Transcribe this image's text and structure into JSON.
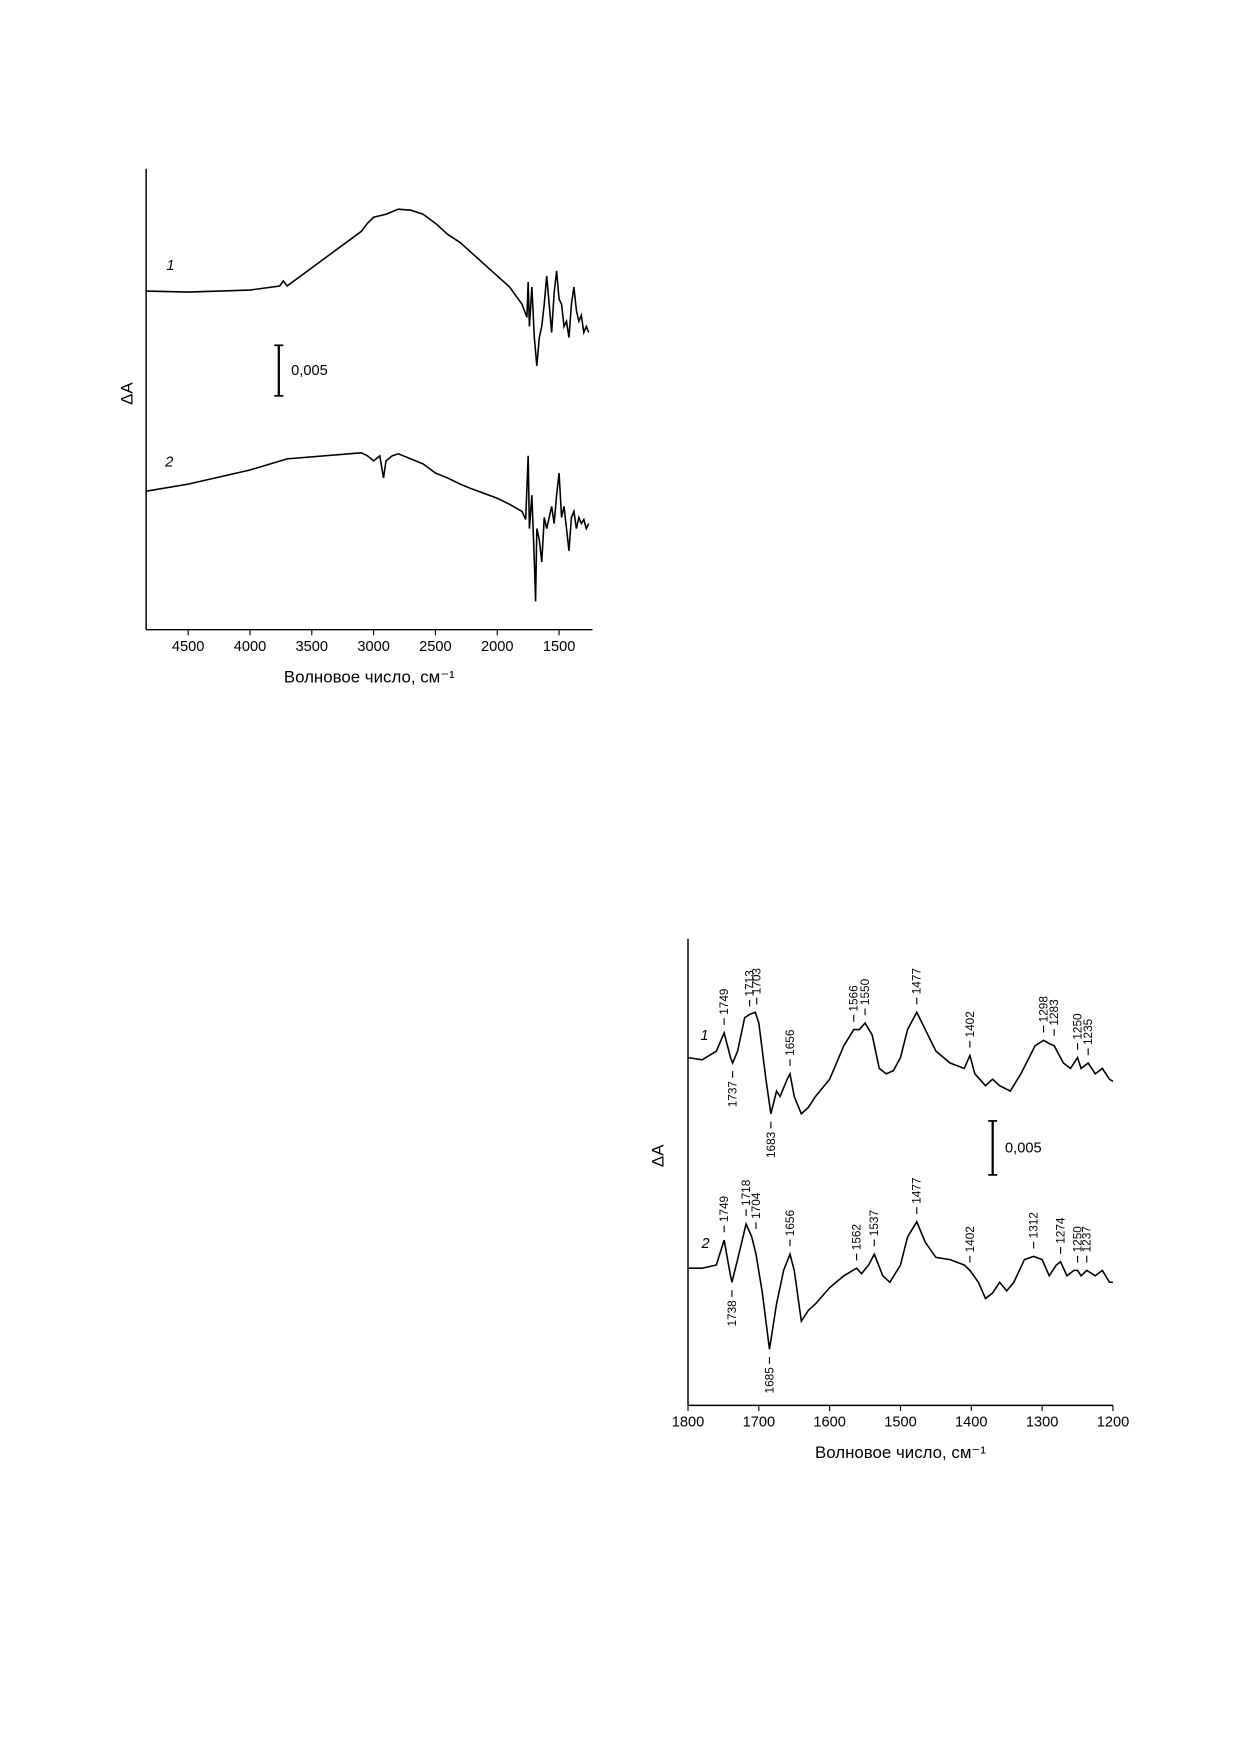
{
  "chart_data": [
    {
      "type": "line",
      "x_label": "Волновое число, см⁻¹",
      "y_label": "ΔA",
      "xlim": [
        4840,
        1230
      ],
      "xticks": [
        4500,
        4000,
        3500,
        3000,
        2500,
        2000,
        1500
      ],
      "ylim": [
        0,
        0.0456
      ],
      "scale_bar": {
        "value": 0.005,
        "label": "0,005"
      },
      "series": [
        {
          "name": "1",
          "color": "#000000",
          "x": [
            4840,
            4500,
            4000,
            3760,
            3730,
            3700,
            3100,
            3050,
            3000,
            2900,
            2800,
            2700,
            2600,
            2500,
            2400,
            2300,
            2200,
            2100,
            2000,
            1900,
            1800,
            1760,
            1750,
            1740,
            1720,
            1700,
            1680,
            1660,
            1640,
            1620,
            1600,
            1580,
            1560,
            1540,
            1520,
            1500,
            1480,
            1460,
            1440,
            1420,
            1400,
            1380,
            1360,
            1340,
            1320,
            1300,
            1280,
            1260
          ],
          "values": [
            0.0335,
            0.0334,
            0.0336,
            0.034,
            0.0345,
            0.034,
            0.0394,
            0.0402,
            0.0408,
            0.0411,
            0.0416,
            0.0415,
            0.0411,
            0.0402,
            0.0391,
            0.0383,
            0.0372,
            0.0361,
            0.035,
            0.0339,
            0.0322,
            0.0309,
            0.0344,
            0.03,
            0.0339,
            0.0289,
            0.0261,
            0.0289,
            0.03,
            0.0322,
            0.035,
            0.0322,
            0.0294,
            0.0333,
            0.0355,
            0.0327,
            0.0322,
            0.03,
            0.0305,
            0.0289,
            0.0322,
            0.0339,
            0.0316,
            0.0305,
            0.0311,
            0.0294,
            0.03,
            0.0294
          ]
        },
        {
          "name": "2",
          "color": "#000000",
          "x": [
            4840,
            4500,
            4000,
            3700,
            3100,
            3050,
            3000,
            2950,
            2920,
            2900,
            2850,
            2800,
            2700,
            2600,
            2500,
            2400,
            2300,
            2200,
            2000,
            1900,
            1800,
            1770,
            1750,
            1740,
            1720,
            1700,
            1690,
            1680,
            1660,
            1640,
            1620,
            1600,
            1560,
            1540,
            1520,
            1500,
            1480,
            1460,
            1440,
            1420,
            1400,
            1380,
            1360,
            1340,
            1320,
            1300,
            1280,
            1260
          ],
          "values": [
            0.0137,
            0.0144,
            0.0158,
            0.0169,
            0.0175,
            0.0172,
            0.0167,
            0.0172,
            0.015,
            0.0167,
            0.0172,
            0.0174,
            0.0169,
            0.0164,
            0.0155,
            0.015,
            0.0144,
            0.0139,
            0.013,
            0.0124,
            0.0117,
            0.0109,
            0.0172,
            0.01,
            0.0133,
            0.0067,
            0.0028,
            0.01,
            0.0089,
            0.0067,
            0.0111,
            0.01,
            0.0122,
            0.0105,
            0.0133,
            0.0155,
            0.0111,
            0.0122,
            0.01,
            0.0078,
            0.0111,
            0.0117,
            0.01,
            0.0111,
            0.0105,
            0.0109,
            0.01,
            0.0105
          ]
        }
      ]
    },
    {
      "type": "line",
      "x_label": "Волновое число, см⁻¹",
      "y_label": "ΔA",
      "xlim": [
        1800,
        1200
      ],
      "xticks": [
        1800,
        1700,
        1600,
        1500,
        1400,
        1300,
        1200
      ],
      "ylim": [
        0,
        0.0432
      ],
      "scale_bar": {
        "value": 0.005,
        "label": "0,005"
      },
      "series": [
        {
          "name": "1",
          "color": "#000000",
          "x": [
            1800,
            1780,
            1760,
            1749,
            1740,
            1737,
            1730,
            1720,
            1713,
            1705,
            1700,
            1690,
            1683,
            1675,
            1670,
            1660,
            1656,
            1650,
            1640,
            1630,
            1620,
            1600,
            1580,
            1566,
            1558,
            1550,
            1540,
            1530,
            1520,
            1510,
            1500,
            1490,
            1477,
            1465,
            1450,
            1430,
            1410,
            1402,
            1395,
            1380,
            1370,
            1360,
            1345,
            1330,
            1310,
            1298,
            1290,
            1283,
            1270,
            1260,
            1250,
            1245,
            1235,
            1225,
            1215,
            1205,
            1200
          ],
          "values": [
            0.0322,
            0.032,
            0.0328,
            0.0345,
            0.0322,
            0.0317,
            0.0328,
            0.0359,
            0.0362,
            0.0364,
            0.0354,
            0.0302,
            0.027,
            0.0291,
            0.0286,
            0.0302,
            0.0307,
            0.0286,
            0.027,
            0.0276,
            0.0286,
            0.0302,
            0.0333,
            0.0348,
            0.0348,
            0.0354,
            0.0343,
            0.0312,
            0.0307,
            0.031,
            0.0322,
            0.0348,
            0.0364,
            0.0348,
            0.0328,
            0.0317,
            0.0312,
            0.0324,
            0.0307,
            0.0296,
            0.0302,
            0.0296,
            0.0291,
            0.0307,
            0.0333,
            0.0338,
            0.0335,
            0.0333,
            0.0317,
            0.0312,
            0.0322,
            0.0312,
            0.0317,
            0.0307,
            0.0312,
            0.0302,
            0.03
          ],
          "peaks": [
            1749,
            1713,
            1703,
            1656,
            1566,
            1550,
            1477,
            1402,
            1298,
            1283,
            1250,
            1235
          ],
          "troughs": [
            1737,
            1683
          ]
        },
        {
          "name": "2",
          "color": "#000000",
          "x": [
            1800,
            1780,
            1760,
            1749,
            1740,
            1738,
            1730,
            1718,
            1710,
            1704,
            1695,
            1685,
            1675,
            1665,
            1656,
            1650,
            1640,
            1630,
            1620,
            1600,
            1580,
            1562,
            1555,
            1545,
            1537,
            1525,
            1515,
            1500,
            1490,
            1477,
            1465,
            1450,
            1430,
            1410,
            1402,
            1390,
            1380,
            1370,
            1360,
            1350,
            1340,
            1325,
            1312,
            1300,
            1290,
            1280,
            1274,
            1265,
            1255,
            1250,
            1245,
            1237,
            1225,
            1215,
            1205,
            1200
          ],
          "values": [
            0.0127,
            0.0127,
            0.013,
            0.0153,
            0.012,
            0.0114,
            0.0135,
            0.0168,
            0.0156,
            0.014,
            0.0104,
            0.0052,
            0.0094,
            0.0125,
            0.014,
            0.0125,
            0.0078,
            0.0088,
            0.0094,
            0.0109,
            0.012,
            0.0127,
            0.0122,
            0.013,
            0.014,
            0.012,
            0.0114,
            0.013,
            0.0156,
            0.017,
            0.0151,
            0.0137,
            0.0135,
            0.013,
            0.0125,
            0.0114,
            0.0099,
            0.0104,
            0.0114,
            0.0106,
            0.0114,
            0.0135,
            0.0138,
            0.0135,
            0.012,
            0.013,
            0.0133,
            0.012,
            0.0125,
            0.0125,
            0.012,
            0.0125,
            0.012,
            0.0125,
            0.0114,
            0.0114
          ],
          "peaks": [
            1749,
            1718,
            1704,
            1656,
            1562,
            1537,
            1477,
            1402,
            1312,
            1274,
            1250,
            1237
          ],
          "troughs": [
            1738,
            1685
          ]
        }
      ]
    }
  ]
}
